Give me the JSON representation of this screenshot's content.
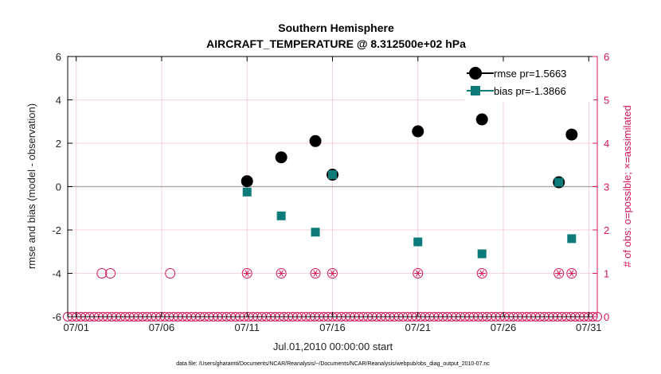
{
  "chart_data": {
    "type": "scatter",
    "title_line1": "Southern Hemisphere",
    "title_line2": "AIRCRAFT_TEMPERATURE @ 8.312500e+02 hPa",
    "ylabel": "rmse and bias (model - observation)",
    "ylabel_right": "# of obs: o=possible; ×=assimilated",
    "xlabel": "Jul.01,2010 00:00:00 start",
    "footnote": "data file: /Users/gharamti/Documents/NCAR/Reanalysis/~/Documents/NCAR/Reanalysis/webpub/obs_diag_output_2010-07.nc",
    "xlim": [
      0.5,
      31.5
    ],
    "ylim": [
      -6,
      6
    ],
    "ylim_right": [
      0,
      6
    ],
    "x_ticks": [
      {
        "x": 1,
        "label": "07/01"
      },
      {
        "x": 6,
        "label": "07/06"
      },
      {
        "x": 11,
        "label": "07/11"
      },
      {
        "x": 16,
        "label": "07/16"
      },
      {
        "x": 21,
        "label": "07/21"
      },
      {
        "x": 26,
        "label": "07/26"
      },
      {
        "x": 31,
        "label": "07/31"
      }
    ],
    "y_ticks": [
      "-6",
      "-4",
      "-2",
      "0",
      "2",
      "4",
      "6"
    ],
    "y_ticks_right": [
      "0",
      "1",
      "2",
      "3",
      "4",
      "5",
      "6"
    ],
    "colors": {
      "rmse": "#000000",
      "bias": "#0e7b7b",
      "obs": "#d4145a",
      "zero_line": "#aaaaaa",
      "grid": "#f2c6d6"
    },
    "series": [
      {
        "name": "rmse",
        "legend": "rmse pr=1.5663",
        "x": [
          11,
          13,
          15,
          16,
          21,
          24.75,
          29.25,
          30
        ],
        "values": [
          0.25,
          1.35,
          2.1,
          0.55,
          2.55,
          3.1,
          0.2,
          2.4
        ]
      },
      {
        "name": "bias",
        "legend": "bias pr=-1.3866",
        "x": [
          11,
          13,
          15,
          16,
          21,
          24.75,
          29.25,
          30
        ],
        "values": [
          -0.25,
          -1.35,
          -2.1,
          0.55,
          -2.55,
          -3.1,
          0.2,
          -2.4
        ]
      }
    ],
    "obs_possible_x": [
      2.5,
      3,
      6.5,
      11,
      13,
      15,
      16,
      21,
      24.75,
      29.25,
      30
    ],
    "obs_assimilated_x": [
      11,
      13,
      15,
      16,
      21,
      24.75,
      29.25,
      30
    ],
    "obs_count": 1
  }
}
